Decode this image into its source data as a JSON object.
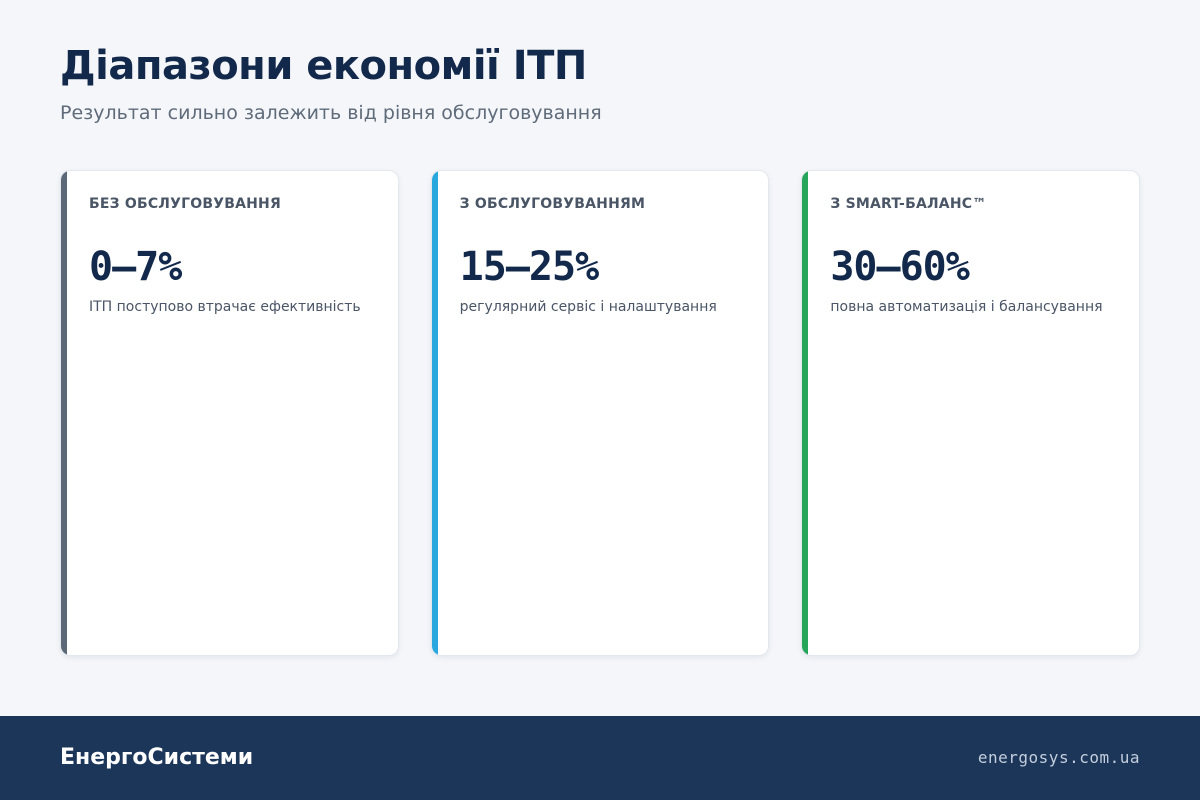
{
  "header": {
    "title": "Діапазони економії ІТП",
    "subtitle": "Результат сильно залежить від рівня обслуговування"
  },
  "cards": [
    {
      "label": "БЕЗ ОБСЛУГОВУВАННЯ",
      "value": "0–7%",
      "description": "ІТП поступово втрачає ефективність",
      "accent_color": "#5c6878"
    },
    {
      "label": "З ОБСЛУГОВУВАННЯМ",
      "value": "15–25%",
      "description": "регулярний сервіс і налаштування",
      "accent_color": "#29a8e0"
    },
    {
      "label": "З SMART-БАЛАНС™",
      "value": "30–60%",
      "description": "повна автоматизація і балансування",
      "accent_color": "#27a55a"
    }
  ],
  "footer": {
    "brand": "ЕнергоСистеми",
    "url": "energosys.com.ua"
  }
}
